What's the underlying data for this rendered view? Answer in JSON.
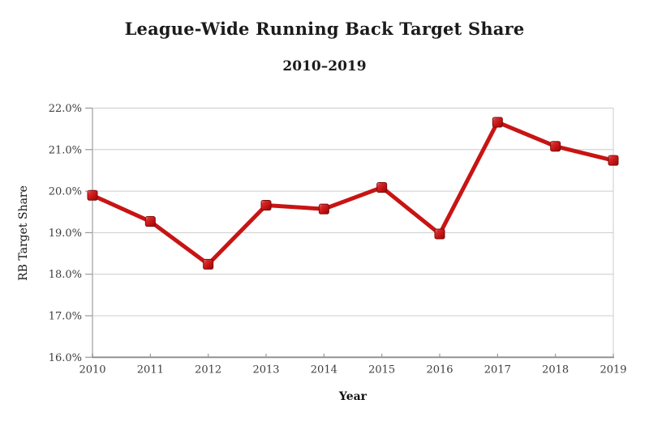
{
  "chart_data": {
    "type": "line",
    "title": "League-Wide Running Back Target Share",
    "subtitle": "2010–2019",
    "xlabel": "Year",
    "ylabel": "RB Target Share",
    "categories": [
      2010,
      2011,
      2012,
      2013,
      2014,
      2015,
      2016,
      2017,
      2018,
      2019
    ],
    "x_tick_labels": [
      "2010",
      "2011",
      "2012",
      "2013",
      "2014",
      "2015",
      "2016",
      "2017",
      "2018",
      "2019"
    ],
    "series": [
      {
        "name": "RB Target Share",
        "values": [
          19.9,
          19.27,
          18.24,
          19.66,
          19.57,
          20.09,
          18.97,
          21.66,
          21.08,
          20.74
        ]
      }
    ],
    "value_unit": "%",
    "ylim": [
      16.0,
      22.0
    ],
    "y_ticks": [
      16,
      17,
      18,
      19,
      20,
      21,
      22
    ],
    "y_tick_labels": [
      "16.0%",
      "17.0%",
      "18.0%",
      "19.0%",
      "20.0%",
      "21.0%",
      "22.0%"
    ],
    "grid": true,
    "legend": "none",
    "colors": {
      "series": "#c81414",
      "marker_edge": "#7e0909",
      "marker_highlight": "#efb0b0",
      "marker_dark": "#8f0a0a",
      "grid": "#cccccc",
      "axis_bottom": "#8c8c8c",
      "axis_left": "#c4c4c4",
      "tick": "#999999",
      "tick_text": "#3d3d3d",
      "title_text": "#1b1b1b"
    }
  }
}
